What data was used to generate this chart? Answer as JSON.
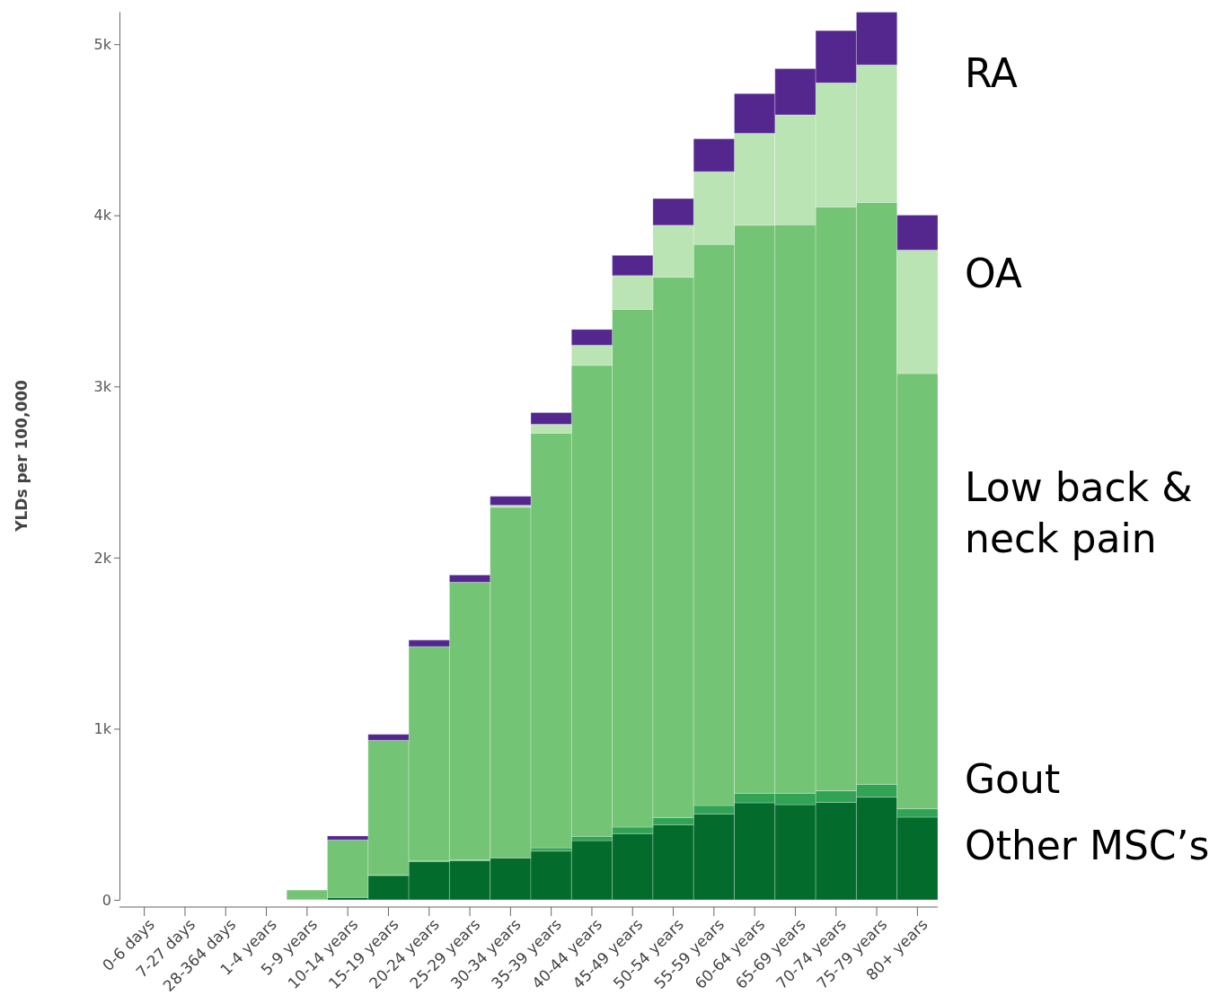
{
  "chart_data": {
    "type": "bar",
    "stacked": true,
    "ylabel": "YLDs per 100,000",
    "legend": "right",
    "grid": false,
    "categories": [
      "0-6 days",
      "7-27 days",
      "28-364 days",
      "1-4 years",
      "5-9 years",
      "10-14 years",
      "15-19 years",
      "20-24 years",
      "25-29 years",
      "30-34 years",
      "35-39 years",
      "40-44 years",
      "45-49 years",
      "50-54 years",
      "55-59 years",
      "60-64 years",
      "65-69 years",
      "70-74 years",
      "75-79 years",
      "80+ years"
    ],
    "ylim": [
      0,
      5190
    ],
    "yticks": [
      0,
      {
        "value": 1000,
        "label": "1k"
      },
      {
        "value": 2000,
        "label": "2k"
      },
      {
        "value": 3000,
        "label": "3k"
      },
      {
        "value": 4000,
        "label": "4k"
      },
      {
        "value": 5000,
        "label": "5k"
      }
    ],
    "series": [
      {
        "name": "Other MSC’s",
        "color": "#036c2c",
        "values": [
          0,
          0,
          0,
          0,
          3,
          14,
          142,
          224,
          229,
          245,
          285,
          346,
          387,
          439,
          502,
          567,
          556,
          570,
          600,
          483
        ]
      },
      {
        "name": "Gout",
        "color": "#31a354",
        "values": [
          0,
          0,
          0,
          0,
          0,
          null,
          2,
          3,
          4,
          null,
          19,
          25,
          38,
          42,
          49,
          56,
          67,
          67,
          75,
          49
        ]
      },
      {
        "name": "Low back & neck pain",
        "color": "#74c476",
        "values": [
          0,
          0,
          0,
          0,
          54,
          336,
          788,
          1253,
          1623,
          2049,
          2423,
          2752,
          3025,
          3157,
          3279,
          3319,
          3322,
          3412,
          3400,
          2543
        ]
      },
      {
        "name": "OA",
        "color": "#bae4b3",
        "values": [
          0,
          0,
          0,
          0,
          0,
          0,
          0,
          0,
          0,
          12,
          52,
          118,
          198,
          304,
          425,
          537,
          642,
          725,
          804,
          722
        ]
      },
      {
        "name": "RA",
        "color": "#54278f",
        "values": [
          0,
          0,
          0,
          0,
          null,
          23,
          35,
          38,
          42,
          52,
          68,
          92,
          118,
          156,
          192,
          232,
          270,
          305,
          308,
          204
        ]
      }
    ]
  }
}
